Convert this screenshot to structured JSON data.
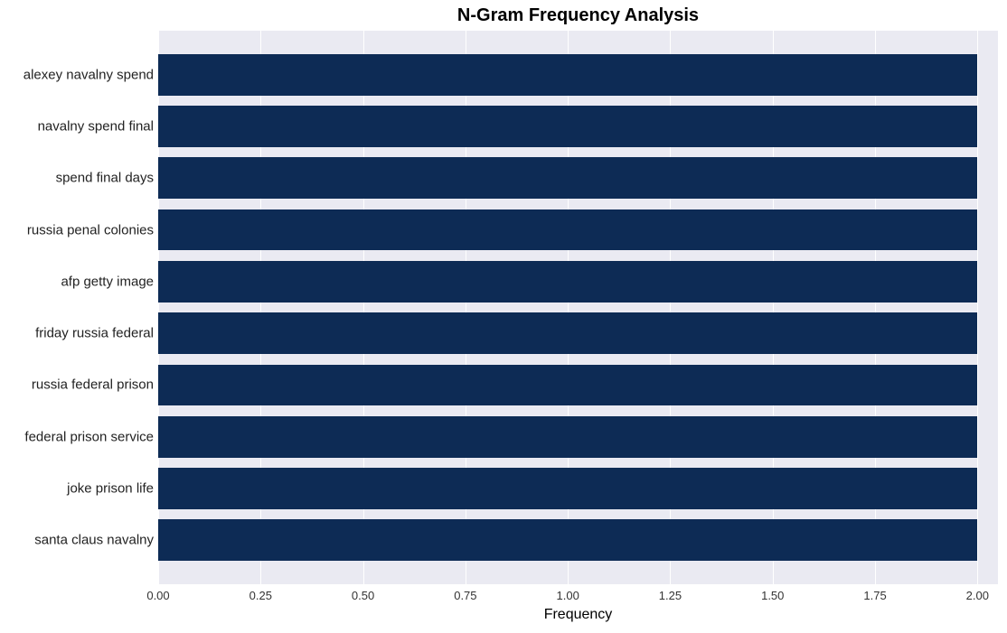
{
  "chart": {
    "type": "horizontal-bar",
    "title": "N-Gram Frequency Analysis",
    "title_fontsize": 20,
    "title_fontweight": 700,
    "xaxis_label": "Frequency",
    "xaxis_label_fontsize": 16,
    "x_min": 0.0,
    "x_max": 2.05,
    "x_ticks": [
      {
        "value": 0.0,
        "label": "0.00"
      },
      {
        "value": 0.25,
        "label": "0.25"
      },
      {
        "value": 0.5,
        "label": "0.50"
      },
      {
        "value": 0.75,
        "label": "0.75"
      },
      {
        "value": 1.0,
        "label": "1.00"
      },
      {
        "value": 1.25,
        "label": "1.25"
      },
      {
        "value": 1.5,
        "label": "1.50"
      },
      {
        "value": 1.75,
        "label": "1.75"
      },
      {
        "value": 2.0,
        "label": "2.00"
      }
    ],
    "xtick_fontsize": 13,
    "ylabel_fontsize": 15,
    "categories": [
      "alexey navalny spend",
      "navalny spend final",
      "spend final days",
      "russia penal colonies",
      "afp getty image",
      "friday russia federal",
      "russia federal prison",
      "federal prison service",
      "joke prison life",
      "santa claus navalny"
    ],
    "values": [
      2.0,
      2.0,
      2.0,
      2.0,
      2.0,
      2.0,
      2.0,
      2.0,
      2.0,
      2.0
    ],
    "bar_color": "#0d2b55",
    "band_color": "#eaeaf2",
    "grid_line_color": "#ffffff",
    "background_color": "#ffffff",
    "bar_height_ratio": 0.8
  }
}
